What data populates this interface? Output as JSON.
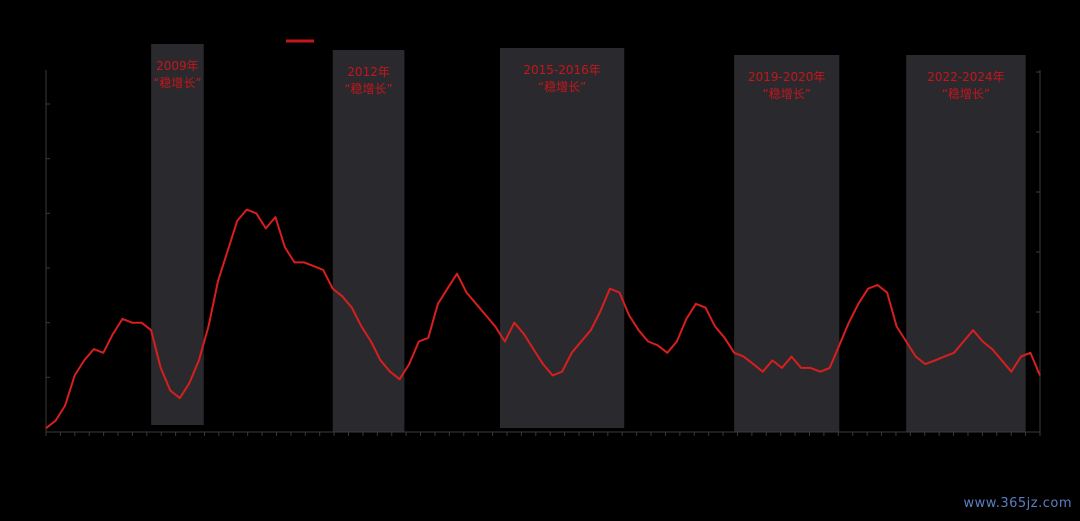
{
  "chart_data": {
    "type": "line",
    "title": "",
    "xlabel": "",
    "ylabel": "",
    "grid": false,
    "x": [
      0,
      2,
      4,
      6,
      8,
      10,
      12,
      14,
      16,
      18,
      20,
      22,
      24,
      26,
      28,
      30,
      32,
      34,
      36,
      38,
      40,
      42,
      44,
      46,
      48,
      50,
      52,
      54,
      56,
      58,
      60,
      62,
      64,
      66,
      68,
      70,
      72,
      74,
      76,
      78,
      80,
      82,
      84,
      86,
      88,
      90,
      92,
      94,
      96,
      98,
      100,
      102,
      104,
      106,
      108,
      110,
      112,
      114,
      116,
      118,
      120,
      122,
      124,
      126,
      128,
      130,
      132,
      134,
      136,
      138,
      140,
      142,
      144,
      146,
      148,
      150,
      152,
      154,
      156,
      158,
      160,
      162,
      164,
      166,
      168,
      170,
      172,
      174,
      176,
      178,
      180,
      182,
      184,
      186,
      188,
      190,
      192,
      194,
      196,
      198,
      200,
      202,
      204,
      206,
      208
    ],
    "xlim": [
      0,
      208
    ],
    "ylim": [
      0,
      100
    ],
    "series": [
      {
        "values": [
          1,
          3,
          7,
          15,
          19,
          22,
          21,
          26,
          30,
          29,
          29,
          27,
          17,
          11,
          9,
          13,
          19,
          28,
          40,
          48,
          56,
          59,
          58,
          54,
          57,
          49,
          45,
          45,
          44,
          43,
          38,
          36,
          33,
          28,
          24,
          19,
          16,
          14,
          18,
          24,
          25,
          34,
          38,
          42,
          37,
          34,
          31,
          28,
          24,
          29,
          26,
          22,
          18,
          15,
          16,
          21,
          24,
          27,
          32,
          38,
          37,
          31,
          27,
          24,
          23,
          21,
          24,
          30,
          34,
          33,
          28,
          25,
          21,
          20,
          18,
          16,
          19,
          17,
          20,
          17,
          17,
          16,
          17,
          23,
          29,
          34,
          38,
          39,
          37,
          28,
          24,
          20,
          18,
          19,
          20,
          21,
          24,
          27,
          24,
          22,
          19,
          16,
          20,
          21,
          15
        ],
        "color": "#d81e1e"
      }
    ],
    "shaded_periods": [
      {
        "start": 22,
        "end": 33,
        "line1": "2009年",
        "line2": "“稳增长”"
      },
      {
        "start": 60,
        "end": 75,
        "line1": "2012年",
        "line2": "“稳增长”"
      },
      {
        "start": 95,
        "end": 121,
        "line1": "2015-2016年",
        "line2": "“稳增长”"
      },
      {
        "start": 144,
        "end": 166,
        "line1": "2019-2020年",
        "line2": "“稳增长”"
      },
      {
        "start": 180,
        "end": 205,
        "line1": "2022-2024年",
        "line2": "“稳增长”"
      }
    ],
    "shade_color": "#2a2a2e",
    "label_color": "#c4161c",
    "axis_color": "#3a3a3a"
  },
  "watermark": "www.365jz.com"
}
